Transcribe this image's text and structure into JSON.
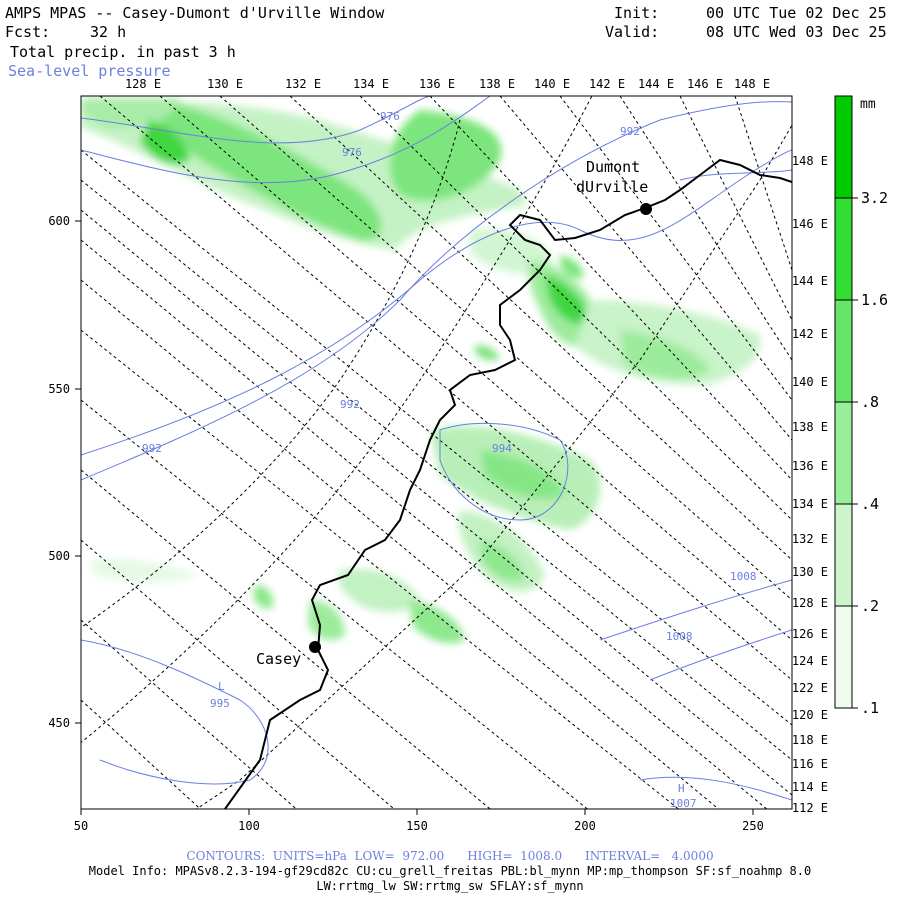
{
  "header": {
    "title": "AMPS MPAS -- Casey-Dumont d'Urville Window",
    "fcst_label": "Fcst:",
    "fcst_value": "32 h",
    "field": "Total precip. in past 3 h",
    "overlay": "Sea-level pressure",
    "init_label": "Init:",
    "init_value": "00 UTC Tue 02 Dec 25",
    "valid_label": "Valid:",
    "valid_value": "08 UTC Wed 03 Dec 25"
  },
  "axes": {
    "bottom_ticks": [
      "50",
      "100",
      "150",
      "200",
      "250"
    ],
    "left_ticks": [
      "600",
      "550",
      "500",
      "450"
    ],
    "top_lon_labels": [
      "128 E",
      "130 E",
      "132 E",
      "134 E",
      "136 E",
      "138 E",
      "140 E",
      "142 E",
      "144 E",
      "146 E",
      "148 E"
    ],
    "right_lon_labels": [
      "148 E",
      "146 E",
      "144 E",
      "142 E",
      "140 E",
      "138 E",
      "136 E",
      "134 E",
      "132 E",
      "130 E",
      "128 E",
      "126 E",
      "124 E",
      "122 E",
      "120 E",
      "118 E",
      "116 E",
      "114 E",
      "112 E"
    ]
  },
  "stations": [
    {
      "name_line1": "Dumont",
      "name_line2": "dUrville"
    },
    {
      "name_line1": "Casey",
      "name_line2": ""
    }
  ],
  "pressure_labels": [
    "976",
    "976",
    "992",
    "992",
    "992",
    "994",
    "995",
    "L",
    "1008",
    "1008",
    "H",
    "1007"
  ],
  "colorbar": {
    "unit": "mm",
    "levels": [
      "3.2",
      "1.6",
      ".8",
      ".4",
      ".2",
      ".1"
    ],
    "colors": [
      "#00cc00",
      "#33dd33",
      "#66e666",
      "#99ee99",
      "#ccf5cc",
      "#eefcee"
    ]
  },
  "footer": {
    "contours": "CONTOURS:  UNITS=hPa  LOW=  972.00      HIGH=  1008.0      INTERVAL=   4.0000",
    "model_info": "Model Info: MPASv8.2.3-194-gf29cd82c CU:cu_grell_freitas PBL:bl_mynn MP:mp_thompson SF:sf_noahmp 8.0",
    "model_info2": "LW:rrtmg_lw SW:rrtmg_sw SFLAY:sf_mynn"
  }
}
